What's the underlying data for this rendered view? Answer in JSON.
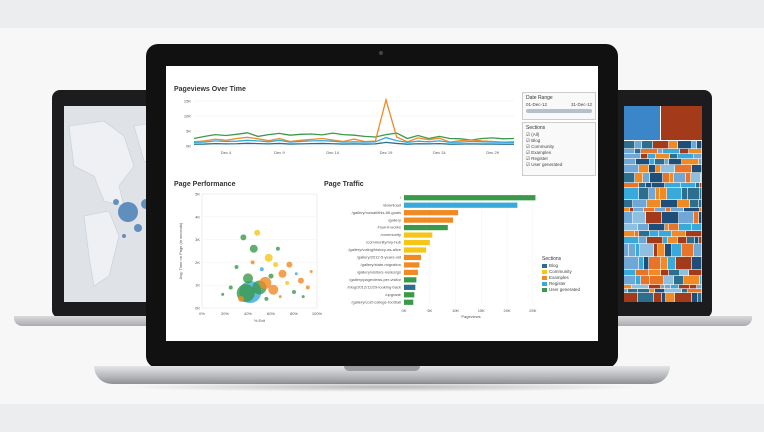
{
  "dashboard": {
    "pageviews_title": "Pageviews Over Time",
    "performance_title": "Page Performance",
    "traffic_title": "Page Traffic",
    "date_range": {
      "label": "Date Range",
      "from": "01-Dec-12",
      "to": "31-Dec-12"
    },
    "sections_filter": {
      "label": "Sections",
      "items": [
        "(All)",
        "Blog",
        "Community",
        "Examples",
        "Register",
        "User generated"
      ]
    },
    "legend": {
      "label": "Sections"
    }
  },
  "colors": {
    "blog": "#2d6e8f",
    "community": "#f5c518",
    "examples": "#f08a24",
    "register": "#39a9dc",
    "user_generated": "#3a9a4a"
  },
  "chart_data": [
    {
      "type": "line",
      "title": "Pageviews Over Time",
      "x_ticks": [
        "Dec 4",
        "Dec 9",
        "Dec 14",
        "Dec 19",
        "Dec 24",
        "Dec 29"
      ],
      "y_ticks": [
        "0K",
        "5K",
        "10K",
        "15K"
      ],
      "ylim": [
        0,
        16000
      ],
      "x": [
        1,
        2,
        3,
        4,
        5,
        6,
        7,
        8,
        9,
        10,
        11,
        12,
        13,
        14,
        15,
        16,
        17,
        18,
        19,
        20,
        21,
        22,
        23,
        24,
        25,
        26,
        27,
        28,
        29,
        30,
        31
      ],
      "series": [
        {
          "color": "#3a9a4a",
          "values": [
            2500,
            3200,
            3800,
            3500,
            3900,
            4400,
            3200,
            3800,
            4200,
            3600,
            3900,
            4000,
            3700,
            4300,
            3800,
            3600,
            3200,
            3000,
            3800,
            4300,
            2500,
            3500,
            2500,
            3200,
            2500,
            2400,
            2000,
            2500,
            2700,
            2400,
            2500
          ]
        },
        {
          "color": "#f08a24",
          "values": [
            1400,
            1700,
            2300,
            1900,
            2500,
            2900,
            2400,
            1800,
            2500,
            1500,
            1900,
            2200,
            2500,
            2000,
            1500,
            2300,
            1500,
            1600,
            15400,
            3000,
            1400,
            2700,
            2100,
            2600,
            1300,
            1800,
            2000,
            1700,
            1500,
            1300,
            1400
          ]
        },
        {
          "color": "#39a9dc",
          "values": [
            1200,
            1300,
            1700,
            1500,
            1600,
            1900,
            1700,
            1400,
            1900,
            1300,
            1500,
            1700,
            1800,
            1600,
            1300,
            1400,
            1300,
            1400,
            2800,
            1800,
            1200,
            1600,
            1400,
            1700,
            1200,
            1300,
            1500,
            1400,
            1300,
            1200,
            1200
          ]
        },
        {
          "color": "#2d6e8f",
          "values": [
            600,
            650,
            800,
            700,
            750,
            900,
            800,
            700,
            850,
            650,
            700,
            800,
            850,
            750,
            650,
            700,
            650,
            700,
            1200,
            850,
            600,
            750,
            700,
            800,
            600,
            650,
            700,
            650,
            650,
            600,
            600
          ]
        }
      ]
    },
    {
      "type": "scatter",
      "title": "Page Performance",
      "xlabel": "% Exit",
      "ylabel": "Avg. Time on Page (in seconds)",
      "x_ticks": [
        "0%",
        "20%",
        "40%",
        "60%",
        "80%",
        "100%"
      ],
      "y_ticks": [
        "0K",
        "1K",
        "2K",
        "3K",
        "4K",
        "5K"
      ],
      "xlim": [
        0,
        100
      ],
      "ylim": [
        0,
        5000
      ],
      "points": [
        {
          "x": 42,
          "y": 700,
          "r": 11,
          "c": "#39a9dc"
        },
        {
          "x": 38,
          "y": 650,
          "r": 9,
          "c": "#3a9a4a"
        },
        {
          "x": 50,
          "y": 900,
          "r": 7,
          "c": "#3a9a4a"
        },
        {
          "x": 40,
          "y": 1300,
          "r": 5,
          "c": "#3a9a4a"
        },
        {
          "x": 55,
          "y": 1100,
          "r": 6,
          "c": "#f08a24"
        },
        {
          "x": 62,
          "y": 800,
          "r": 5,
          "c": "#f08a24"
        },
        {
          "x": 70,
          "y": 1500,
          "r": 4,
          "c": "#f08a24"
        },
        {
          "x": 58,
          "y": 2200,
          "r": 4,
          "c": "#f5c518"
        },
        {
          "x": 48,
          "y": 3300,
          "r": 3,
          "c": "#f5c518"
        },
        {
          "x": 36,
          "y": 3100,
          "r": 3,
          "c": "#3a9a4a"
        },
        {
          "x": 45,
          "y": 2600,
          "r": 4,
          "c": "#3a9a4a"
        },
        {
          "x": 66,
          "y": 2600,
          "r": 2,
          "c": "#3a9a4a"
        },
        {
          "x": 76,
          "y": 1900,
          "r": 3,
          "c": "#f08a24"
        },
        {
          "x": 86,
          "y": 1200,
          "r": 3,
          "c": "#f08a24"
        },
        {
          "x": 92,
          "y": 900,
          "r": 2,
          "c": "#f08a24"
        },
        {
          "x": 80,
          "y": 700,
          "r": 2,
          "c": "#3a9a4a"
        },
        {
          "x": 30,
          "y": 1800,
          "r": 2,
          "c": "#3a9a4a"
        },
        {
          "x": 25,
          "y": 900,
          "r": 2,
          "c": "#3a9a4a"
        },
        {
          "x": 34,
          "y": 400,
          "r": 3,
          "c": "#f08a24"
        },
        {
          "x": 18,
          "y": 600,
          "r": 1.5,
          "c": "#3a9a4a"
        },
        {
          "x": 52,
          "y": 1700,
          "r": 2,
          "c": "#39a9dc"
        },
        {
          "x": 60,
          "y": 1400,
          "r": 2.5,
          "c": "#3a9a4a"
        },
        {
          "x": 74,
          "y": 1100,
          "r": 2,
          "c": "#f5c518"
        },
        {
          "x": 68,
          "y": 500,
          "r": 1.5,
          "c": "#f08a24"
        },
        {
          "x": 88,
          "y": 500,
          "r": 1.5,
          "c": "#3a9a4a"
        },
        {
          "x": 95,
          "y": 1600,
          "r": 1.5,
          "c": "#f08a24"
        },
        {
          "x": 44,
          "y": 2000,
          "r": 2,
          "c": "#f08a24"
        },
        {
          "x": 56,
          "y": 400,
          "r": 2,
          "c": "#3a9a4a"
        },
        {
          "x": 82,
          "y": 1500,
          "r": 1.5,
          "c": "#39a9dc"
        },
        {
          "x": 64,
          "y": 1900,
          "r": 2.5,
          "c": "#f5c518"
        }
      ]
    },
    {
      "type": "bar",
      "title": "Page Traffic",
      "xlabel": "Pageviews",
      "x_ticks": [
        "0K",
        "5K",
        "10K",
        "15K",
        "20K",
        "25K"
      ],
      "xlim": [
        0,
        26000
      ],
      "categories": [
        "/",
        "/download",
        "/gallery/nowall/this-86-goals",
        "/gallery",
        "/how-it-works",
        "/community",
        "/community/my-hub",
        "/gallery/voting/history-as-alive",
        "/gallery/2012-5-years-old",
        "/gallery/state-migration",
        "/gallery/visitors-nodes/gs",
        "/gallery/pageviews-per-visitor",
        "/blog/2012/12/29-looking-back",
        "/upgrade",
        "/gallery/cost-college-football"
      ],
      "values": [
        25500,
        22000,
        10500,
        9500,
        8500,
        5500,
        5000,
        4300,
        3300,
        3000,
        2700,
        2400,
        2200,
        2000,
        1800
      ],
      "bar_colors": [
        "#3a9a4a",
        "#39a9dc",
        "#f08a24",
        "#f08a24",
        "#3a9a4a",
        "#f5c518",
        "#f5c518",
        "#f5c518",
        "#f08a24",
        "#f08a24",
        "#f08a24",
        "#3a9a4a",
        "#2d6e8f",
        "#3a9a4a",
        "#3a9a4a"
      ],
      "legend": [
        "Blog",
        "Community",
        "Examples",
        "Register",
        "User generated"
      ]
    }
  ]
}
